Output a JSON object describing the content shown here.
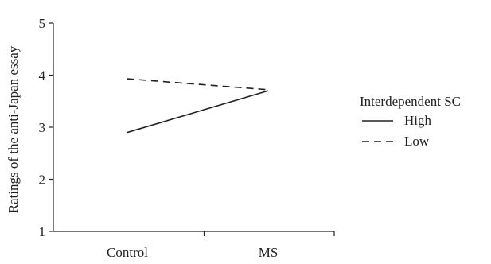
{
  "chart_data": {
    "type": "line",
    "categories": [
      "Control",
      "MS"
    ],
    "series": [
      {
        "name": "High",
        "values": [
          2.9,
          3.7
        ],
        "dash": "solid",
        "color": "#222222"
      },
      {
        "name": "Low",
        "values": [
          3.93,
          3.72
        ],
        "dash": "dashed",
        "color": "#222222"
      }
    ],
    "xlabel": "",
    "ylabel": "Ratings of the anti-Japan essay",
    "ylim": [
      1,
      5
    ],
    "yticks": [
      1,
      2,
      3,
      4,
      5
    ],
    "grid": false,
    "legend": {
      "title": "Interdependent SC",
      "placement": "right"
    }
  }
}
